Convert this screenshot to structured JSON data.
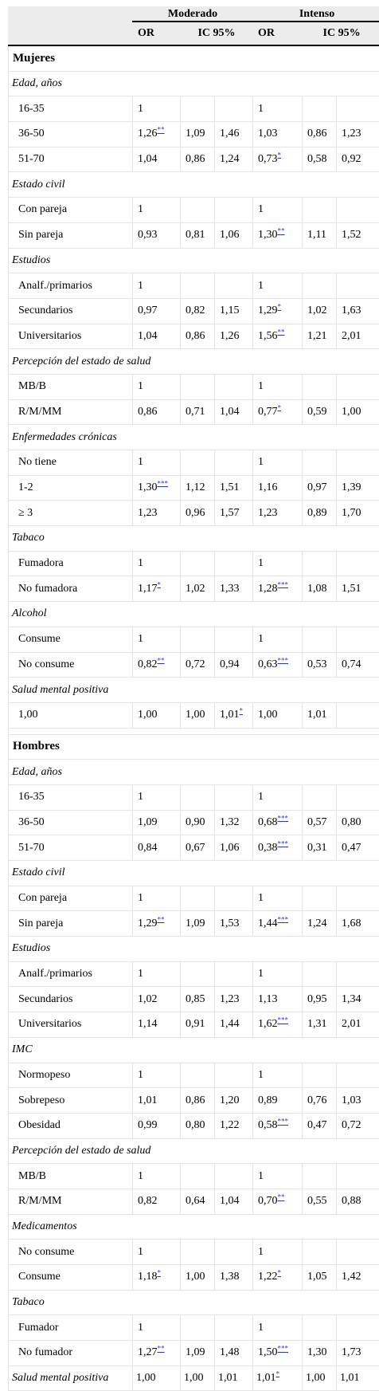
{
  "header": {
    "groups": [
      "Moderado",
      "Intenso"
    ],
    "sub": [
      "OR",
      "IC 95%",
      "OR",
      "IC 95%"
    ]
  },
  "sections": [
    {
      "title": "Mujeres",
      "blocks": [
        {
          "category": "Edad, años",
          "rows": [
            {
              "label": "16-35",
              "cells": [
                "1",
                "",
                "",
                "1",
                "",
                ""
              ],
              "sups": [
                "",
                "",
                "",
                "",
                "",
                ""
              ]
            },
            {
              "label": "36-50",
              "cells": [
                "1,26",
                "1,09",
                "1,46",
                "1,03",
                "0,86",
                "1,23"
              ],
              "sups": [
                "**",
                "",
                "",
                "",
                "",
                ""
              ]
            },
            {
              "label": "51-70",
              "cells": [
                "1,04",
                "0,86",
                "1,24",
                "0,73",
                "0,58",
                "0,92"
              ],
              "sups": [
                "",
                "",
                "",
                "*",
                "",
                ""
              ]
            }
          ]
        },
        {
          "category": "Estado civil",
          "rows": [
            {
              "label": "Con pareja",
              "cells": [
                "1",
                "",
                "",
                "1",
                "",
                ""
              ],
              "sups": [
                "",
                "",
                "",
                "",
                "",
                ""
              ]
            },
            {
              "label": "Sin pareja",
              "cells": [
                "0,93",
                "0,81",
                "1,06",
                "1,30",
                "1,11",
                "1,52"
              ],
              "sups": [
                "",
                "",
                "",
                "**",
                "",
                ""
              ]
            }
          ]
        },
        {
          "category": "Estudios",
          "rows": [
            {
              "label": "Analf./primarios",
              "cells": [
                "1",
                "",
                "",
                "1",
                "",
                ""
              ],
              "sups": [
                "",
                "",
                "",
                "",
                "",
                ""
              ]
            },
            {
              "label": "Secundarios",
              "cells": [
                "0,97",
                "0,82",
                "1,15",
                "1,29",
                "1,02",
                "1,63"
              ],
              "sups": [
                "",
                "",
                "",
                "*",
                "",
                ""
              ]
            },
            {
              "label": "Universitarios",
              "cells": [
                "1,04",
                "0,86",
                "1,26",
                "1,56",
                "1,21",
                "2,01"
              ],
              "sups": [
                "",
                "",
                "",
                "**",
                "",
                ""
              ]
            }
          ]
        },
        {
          "category": "Percepción del estado de salud",
          "rows": [
            {
              "label": "MB/B",
              "cells": [
                "1",
                "",
                "",
                "1",
                "",
                ""
              ],
              "sups": [
                "",
                "",
                "",
                "",
                "",
                ""
              ]
            },
            {
              "label": "R/M/MM",
              "cells": [
                "0,86",
                "0,71",
                "1,04",
                "0,77",
                "0,59",
                "1,00"
              ],
              "sups": [
                "",
                "",
                "",
                "*",
                "",
                ""
              ]
            }
          ]
        },
        {
          "category": "Enfermedades crónicas",
          "rows": [
            {
              "label": "No tiene",
              "cells": [
                "1",
                "",
                "",
                "1",
                "",
                ""
              ],
              "sups": [
                "",
                "",
                "",
                "",
                "",
                ""
              ]
            },
            {
              "label": "1-2",
              "cells": [
                "1,30",
                "1,12",
                "1,51",
                "1,16",
                "0,97",
                "1,39"
              ],
              "sups": [
                "***",
                "",
                "",
                "",
                "",
                ""
              ]
            },
            {
              "label": "≥ 3",
              "cells": [
                "1,23",
                "0,96",
                "1,57",
                "1,23",
                "0,89",
                "1,70"
              ],
              "sups": [
                "",
                "",
                "",
                "",
                "",
                ""
              ]
            }
          ]
        },
        {
          "category": "Tabaco",
          "rows": [
            {
              "label": "Fumadora",
              "cells": [
                "1",
                "",
                "",
                "1",
                "",
                ""
              ],
              "sups": [
                "",
                "",
                "",
                "",
                "",
                ""
              ]
            },
            {
              "label": "No fumadora",
              "cells": [
                "1,17",
                "1,02",
                "1,33",
                "1,28",
                "1,08",
                "1,51"
              ],
              "sups": [
                "*",
                "",
                "",
                "***",
                "",
                ""
              ]
            }
          ]
        },
        {
          "category": "Alcohol",
          "rows": [
            {
              "label": "Consume",
              "cells": [
                "1",
                "",
                "",
                "1",
                "",
                ""
              ],
              "sups": [
                "",
                "",
                "",
                "",
                "",
                ""
              ]
            },
            {
              "label": "No consume",
              "cells": [
                "0,82",
                "0,72",
                "0,94",
                "0,63",
                "0,53",
                "0,74"
              ],
              "sups": [
                "**",
                "",
                "",
                "***",
                "",
                ""
              ]
            }
          ]
        },
        {
          "category": "Salud mental positiva",
          "rows": [
            {
              "label": "1,00",
              "cells": [
                "1,00",
                "1,00",
                "1,01",
                "1,00",
                "1,01",
                ""
              ],
              "sups": [
                "",
                "",
                "*",
                "",
                "",
                ""
              ]
            }
          ]
        }
      ]
    },
    {
      "title": "Hombres",
      "blocks": [
        {
          "category": "Edad, años",
          "rows": [
            {
              "label": "16-35",
              "cells": [
                "1",
                "",
                "",
                "1",
                "",
                ""
              ],
              "sups": [
                "",
                "",
                "",
                "",
                "",
                ""
              ]
            },
            {
              "label": "36-50",
              "cells": [
                "1,09",
                "0,90",
                "1,32",
                "0,68",
                "0,57",
                "0,80"
              ],
              "sups": [
                "",
                "",
                "",
                "***",
                "",
                ""
              ]
            },
            {
              "label": "51-70",
              "cells": [
                "0,84",
                "0,67",
                "1,06",
                "0,38",
                "0,31",
                "0,47"
              ],
              "sups": [
                "",
                "",
                "",
                "***",
                "",
                ""
              ]
            }
          ]
        },
        {
          "category": "Estado civil",
          "rows": [
            {
              "label": "Con pareja",
              "cells": [
                "1",
                "",
                "",
                "1",
                "",
                ""
              ],
              "sups": [
                "",
                "",
                "",
                "",
                "",
                ""
              ]
            },
            {
              "label": "Sin pareja",
              "cells": [
                "1,29",
                "1,09",
                "1,53",
                "1,44",
                "1,24",
                "1,68"
              ],
              "sups": [
                "**",
                "",
                "",
                "***",
                "",
                ""
              ]
            }
          ]
        },
        {
          "category": "Estudios",
          "rows": [
            {
              "label": "Analf./primarios",
              "cells": [
                "1",
                "",
                "",
                "1",
                "",
                ""
              ],
              "sups": [
                "",
                "",
                "",
                "",
                "",
                ""
              ]
            },
            {
              "label": "Secundarios",
              "cells": [
                "1,02",
                "0,85",
                "1,23",
                "1,13",
                "0,95",
                "1,34"
              ],
              "sups": [
                "",
                "",
                "",
                "",
                "",
                ""
              ]
            },
            {
              "label": "Universitarios",
              "cells": [
                "1,14",
                "0,91",
                "1,44",
                "1,62",
                "1,31",
                "2,01"
              ],
              "sups": [
                "",
                "",
                "",
                "***",
                "",
                ""
              ]
            }
          ]
        },
        {
          "category": "IMC",
          "rows": [
            {
              "label": "Normopeso",
              "cells": [
                "1",
                "",
                "",
                "1",
                "",
                ""
              ],
              "sups": [
                "",
                "",
                "",
                "",
                "",
                ""
              ]
            },
            {
              "label": "Sobrepeso",
              "cells": [
                "1,01",
                "0,86",
                "1,20",
                "0,89",
                "0,76",
                "1,03"
              ],
              "sups": [
                "",
                "",
                "",
                "",
                "",
                ""
              ]
            },
            {
              "label": "Obesidad",
              "cells": [
                "0,99",
                "0,80",
                "1,22",
                "0,58",
                "0,47",
                "0,72"
              ],
              "sups": [
                "",
                "",
                "",
                "***",
                "",
                ""
              ]
            }
          ]
        },
        {
          "category": "Percepción del estado de salud",
          "rows": [
            {
              "label": "MB/B",
              "cells": [
                "1",
                "",
                "",
                "1",
                "",
                ""
              ],
              "sups": [
                "",
                "",
                "",
                "",
                "",
                ""
              ]
            },
            {
              "label": "R/M/MM",
              "cells": [
                "0,82",
                "0,64",
                "1,04",
                "0,70",
                "0,55",
                "0,88"
              ],
              "sups": [
                "",
                "",
                "",
                "**",
                "",
                ""
              ]
            }
          ]
        },
        {
          "category": "Medicamentos",
          "rows": [
            {
              "label": "No consume",
              "cells": [
                "1",
                "",
                "",
                "1",
                "",
                ""
              ],
              "sups": [
                "",
                "",
                "",
                "",
                "",
                ""
              ]
            },
            {
              "label": "Consume",
              "cells": [
                "1,18",
                "1,00",
                "1,38",
                "1,22",
                "1,05",
                "1,42"
              ],
              "sups": [
                "*",
                "",
                "",
                "*",
                "",
                ""
              ]
            }
          ]
        },
        {
          "category": "Tabaco",
          "rows": [
            {
              "label": "Fumador",
              "cells": [
                "1",
                "",
                "",
                "1",
                "",
                ""
              ],
              "sups": [
                "",
                "",
                "",
                "",
                "",
                ""
              ]
            },
            {
              "label": "No fumador",
              "cells": [
                "1,27",
                "1,09",
                "1,48",
                "1,50",
                "1,30",
                "1,73"
              ],
              "sups": [
                "**",
                "",
                "",
                "***",
                "",
                ""
              ]
            }
          ]
        }
      ]
    }
  ],
  "footer_row": {
    "category": "Salud mental positiva",
    "cells": [
      "1,00",
      "1,00",
      "1,01",
      "1,01",
      "1,00",
      "1,01"
    ],
    "sups": [
      "",
      "",
      "",
      "*",
      "",
      ""
    ]
  }
}
